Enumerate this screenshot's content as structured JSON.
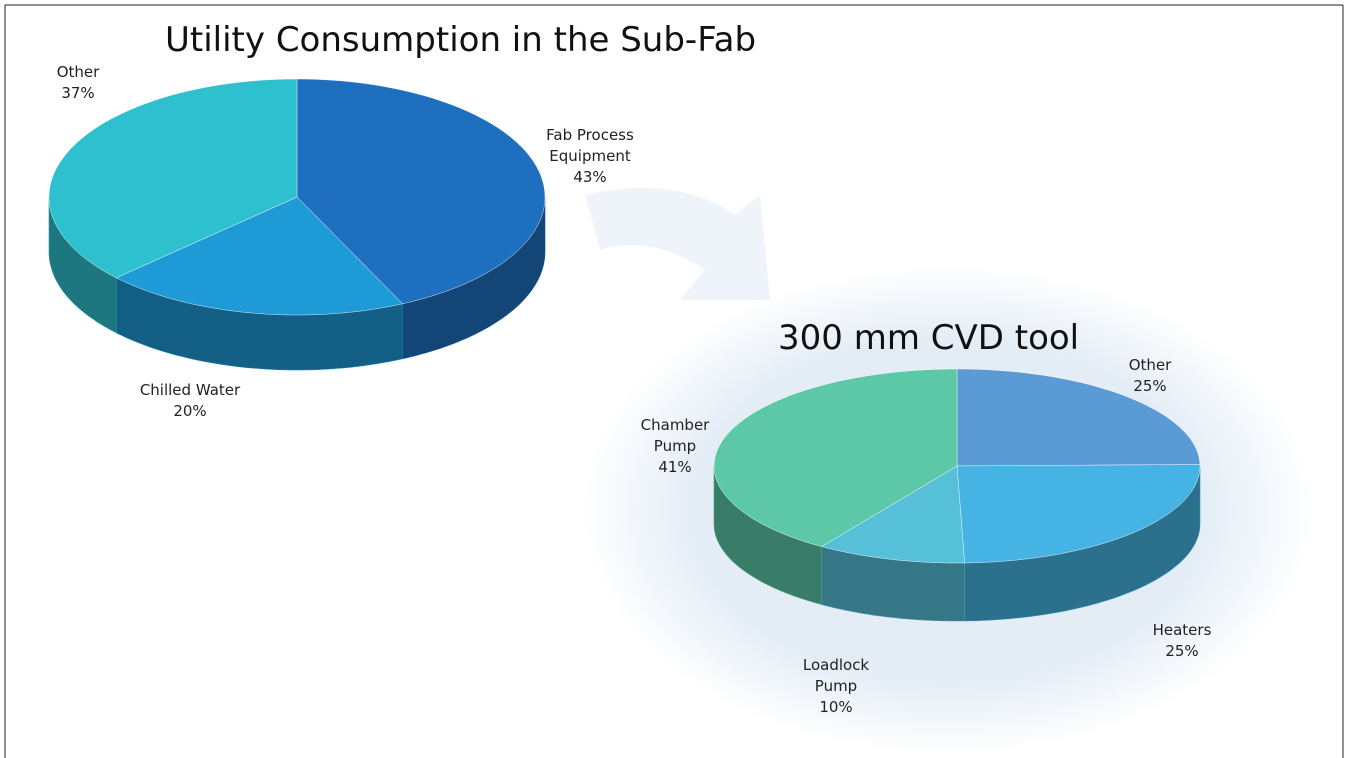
{
  "chart_data": [
    {
      "type": "pie",
      "title": "Utility Consumption in the Sub-Fab",
      "categories": [
        "Fab Process Equipment",
        "Chilled Water",
        "Other"
      ],
      "values": [
        43,
        20,
        37
      ],
      "value_labels": [
        "43%",
        "20%",
        "37%"
      ],
      "colors": [
        "#1f6fc0",
        "#1e9ad6",
        "#2ec0cf"
      ]
    },
    {
      "type": "pie",
      "title": "300 mm CVD tool",
      "categories": [
        "Other",
        "Heaters",
        "Loadlock Pump",
        "Chamber Pump"
      ],
      "values": [
        25,
        25,
        10,
        41
      ],
      "value_labels": [
        "25%",
        "25%",
        "10%",
        "41%"
      ],
      "colors": [
        "#5b9bd5",
        "#45b4e4",
        "#56c0d8",
        "#5cc8a8"
      ]
    }
  ]
}
